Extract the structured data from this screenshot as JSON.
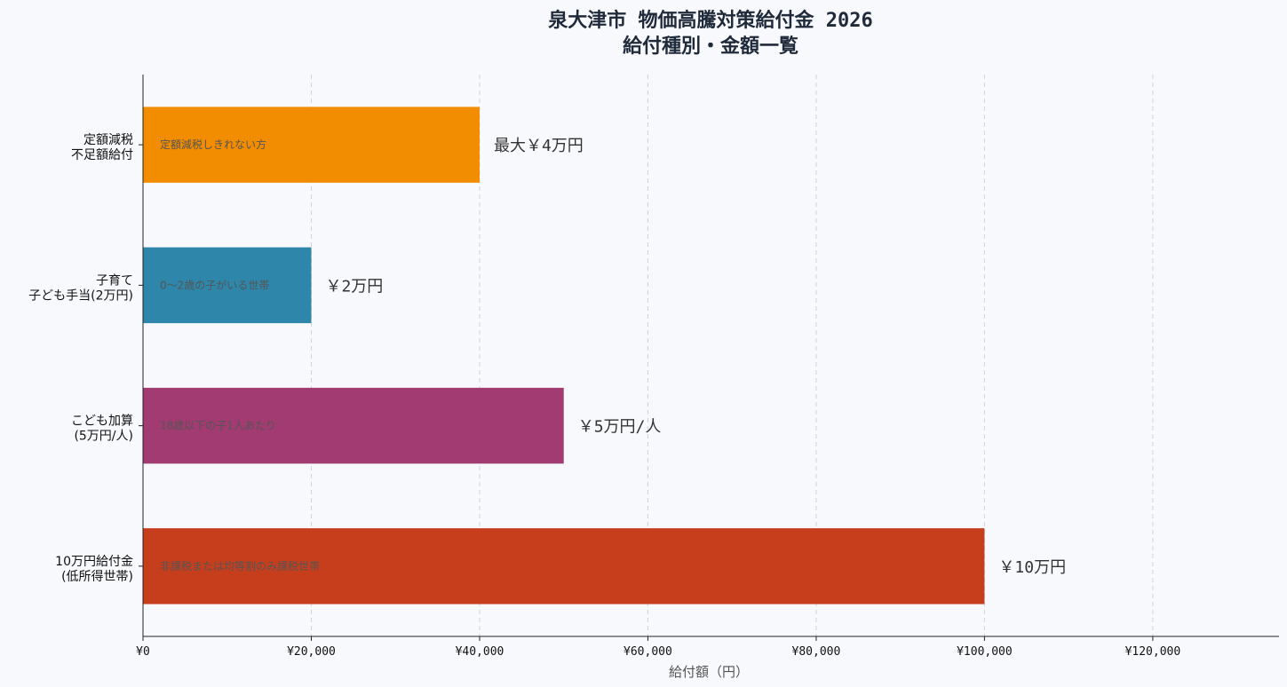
{
  "chart_data": {
    "type": "bar",
    "orientation": "horizontal",
    "title": "泉大津市 物価高騰対策給付金 2026",
    "subtitle": "給付種別・金額一覧",
    "xlabel": "給付額（円）",
    "ylabel": "",
    "xlim": [
      0,
      135000
    ],
    "xticks": [
      0,
      20000,
      40000,
      60000,
      80000,
      100000,
      120000
    ],
    "xtick_labels": [
      "¥0",
      "¥20,000",
      "¥40,000",
      "¥60,000",
      "¥80,000",
      "¥100,000",
      "¥120,000"
    ],
    "grid": "x-dashed",
    "categories": [
      [
        "定額減税",
        "不足額給付"
      ],
      [
        "子育て",
        "子ども手当(2万円)"
      ],
      [
        "こども加算",
        "(5万円/人)"
      ],
      [
        "10万円給付金",
        "(低所得世帯)"
      ]
    ],
    "values": [
      40000,
      20000,
      50000,
      100000
    ],
    "value_labels": [
      "最大￥4万円",
      "￥2万円",
      "￥5万円/人",
      "￥10万円"
    ],
    "inner_labels": [
      "定額減税しきれない方",
      "0～2歳の子がいる世帯",
      "18歳以下の子1人あたり",
      "非課税または均等割のみ課税世帯"
    ],
    "colors": [
      "#f28c00",
      "#2e86ab",
      "#a23b72",
      "#c73e1d"
    ]
  }
}
